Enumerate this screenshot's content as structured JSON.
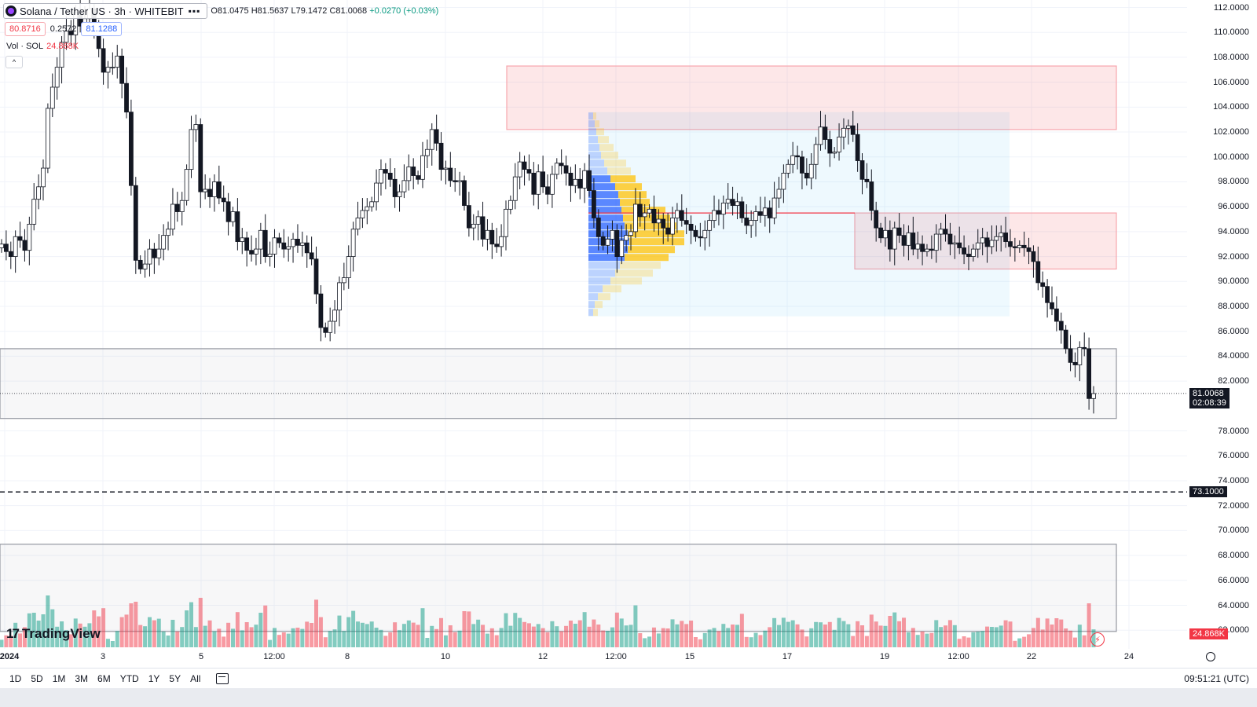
{
  "header": {
    "symbol": "Solana / Tether US · 3h · WHITEBIT",
    "menu_icon": "more-dots-icon",
    "ohlc": {
      "open": "O81.0475",
      "high": "H81.5637",
      "low": "L79.1472",
      "close": "C81.0068",
      "change": "+0.0270 (+0.03%)"
    },
    "sell_price": "80.8716",
    "spread": "0.2572",
    "buy_price": "81.1288",
    "volume_label": "Vol · SOL",
    "volume_value": "24.868K"
  },
  "price_axis": {
    "ticks": [
      "112.0000",
      "110.0000",
      "108.0000",
      "106.0000",
      "104.0000",
      "102.0000",
      "100.0000",
      "98.0000",
      "96.0000",
      "94.0000",
      "92.0000",
      "90.0000",
      "88.0000",
      "86.0000",
      "84.0000",
      "82.0000",
      "78.0000",
      "76.0000",
      "74.0000",
      "72.0000",
      "70.0000",
      "68.0000",
      "66.0000",
      "64.0000",
      "62.0000"
    ],
    "last_price": "81.0068",
    "countdown": "02:08:39",
    "horizontal_line_price": "73.1000",
    "volume_tag": "24.868K"
  },
  "time_axis": {
    "ticks": [
      "2024",
      "3",
      "5",
      "12:00",
      "8",
      "10",
      "12",
      "12:00",
      "15",
      "17",
      "19",
      "12:00",
      "22",
      "24"
    ]
  },
  "bottom_bar": {
    "ranges": [
      "1D",
      "5D",
      "1M",
      "3M",
      "6M",
      "YTD",
      "1Y",
      "5Y",
      "All"
    ],
    "clock": "09:51:21 (UTC)"
  },
  "logo": "TradingView",
  "colors": {
    "up": "#089981",
    "down": "#f23645",
    "candle_up_fill": "#ffffff",
    "candle_down_fill": "#131722",
    "resistance_zone": "#f23645",
    "support_zone": "#9598a1",
    "volume_profile_up": "#2962ff",
    "volume_profile_down": "#ffc107"
  },
  "chart_data": {
    "type": "candlestick",
    "price_range": [
      60.5,
      112.6
    ],
    "zones": [
      {
        "kind": "resistance",
        "from": 102.2,
        "to": 107.3
      },
      {
        "kind": "resistance",
        "from": 91.0,
        "to": 95.5
      },
      {
        "kind": "support",
        "from": 79.0,
        "to": 84.6
      },
      {
        "kind": "support",
        "from": 61.9,
        "to": 68.9
      }
    ],
    "horizontal_line": 73.1,
    "poc_line": 95.5,
    "candles_close": [
      93.0,
      92.4,
      92.0,
      93.6,
      93.3,
      92.5,
      94.6,
      96.6,
      97.6,
      99.1,
      103.9,
      105.6,
      107.2,
      109.2,
      110.1,
      109.8,
      111.6,
      110.5,
      111.1,
      111.9,
      109.9,
      108.7,
      106.8,
      107.2,
      107.2,
      108.1,
      105.9,
      103.6,
      97.7,
      91.7,
      91.0,
      91.4,
      92.6,
      91.9,
      92.6,
      93.7,
      94.2,
      96.2,
      95.6,
      96.5,
      99.0,
      102.2,
      102.6,
      97.2,
      97.4,
      96.8,
      98.0,
      96.7,
      96.4,
      94.8,
      95.6,
      93.2,
      93.5,
      92.5,
      92.2,
      92.6,
      94.1,
      92.0,
      92.2,
      93.5,
      93.1,
      92.6,
      92.8,
      93.4,
      92.9,
      93.1,
      92.3,
      91.8,
      89.0,
      86.3,
      85.9,
      86.8,
      87.7,
      89.9,
      90.3,
      92.0,
      94.2,
      95.1,
      95.7,
      96.0,
      96.4,
      97.9,
      99.0,
      98.7,
      98.2,
      96.8,
      97.2,
      98.1,
      99.2,
      98.5,
      98.2,
      100.1,
      100.6,
      102.2,
      101.1,
      99.0,
      99.1,
      98.1,
      98.0,
      98.1,
      96.1,
      94.3,
      94.6,
      95.2,
      93.4,
      94.1,
      93.0,
      92.8,
      93.6,
      95.8,
      96.5,
      98.4,
      99.6,
      99.0,
      98.7,
      97.0,
      98.8,
      97.6,
      97.0,
      98.6,
      99.5,
      99.3,
      98.7,
      97.7,
      98.2,
      97.5,
      98.9,
      97.3,
      95.1,
      93.6,
      92.9,
      93.4,
      94.1,
      92.0,
      93.3,
      93.7,
      94.0,
      96.2,
      95.2,
      95.5,
      95.8,
      94.7,
      95.0,
      94.3,
      93.8,
      95.1,
      95.7,
      94.9,
      94.6,
      94.1,
      93.6,
      93.5,
      94.1,
      94.9,
      95.7,
      95.4,
      96.3,
      96.6,
      96.1,
      96.4,
      95.1,
      94.5,
      94.9,
      95.6,
      95.3,
      95.9,
      95.1,
      96.7,
      97.4,
      98.7,
      99.4,
      100.1,
      100.0,
      98.7,
      98.3,
      99.4,
      101.0,
      102.4,
      101.4,
      100.3,
      100.4,
      101.6,
      102.3,
      102.5,
      101.8,
      99.7,
      98.2,
      98.0,
      95.7,
      94.3,
      93.5,
      94.1,
      92.6,
      94.3,
      93.7,
      92.9,
      93.9,
      92.6,
      93.0,
      92.4,
      92.6,
      92.5,
      93.8,
      94.2,
      93.8,
      93.0,
      93.1,
      92.7,
      92.2,
      92.0,
      92.6,
      93.1,
      93.5,
      92.8,
      93.3,
      93.6,
      93.9,
      93.2,
      92.8,
      92.7,
      92.9,
      92.7,
      92.4,
      91.6,
      89.9,
      89.6,
      88.3,
      87.8,
      86.8,
      86.1,
      84.6,
      83.5,
      83.3,
      84.7,
      84.6,
      80.6,
      81.0
    ]
  }
}
